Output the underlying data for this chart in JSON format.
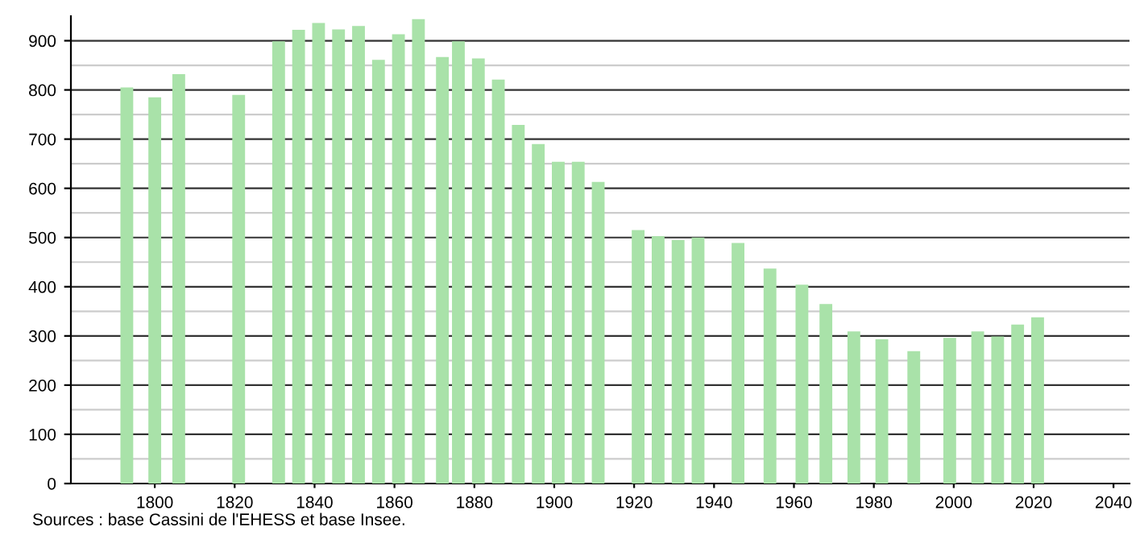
{
  "chart_data": {
    "type": "bar",
    "x": [
      1793,
      1800,
      1806,
      1821,
      1831,
      1836,
      1841,
      1846,
      1851,
      1856,
      1861,
      1866,
      1872,
      1876,
      1881,
      1886,
      1891,
      1896,
      1901,
      1906,
      1911,
      1921,
      1926,
      1931,
      1936,
      1946,
      1954,
      1962,
      1968,
      1975,
      1982,
      1990,
      1999,
      2006,
      2011,
      2016,
      2021
    ],
    "values": [
      805,
      785,
      832,
      790,
      899,
      922,
      936,
      923,
      930,
      861,
      913,
      944,
      867,
      899,
      864,
      821,
      729,
      690,
      654,
      654,
      613,
      515,
      503,
      495,
      500,
      489,
      437,
      404,
      365,
      309,
      293,
      269,
      296,
      309,
      299,
      323,
      338
    ],
    "color": "#a9e2a9",
    "xlim": [
      1779,
      2044
    ],
    "xticks": [
      1800,
      1820,
      1840,
      1860,
      1880,
      1900,
      1920,
      1940,
      1960,
      1980,
      2000,
      2020,
      2040
    ],
    "ylim": [
      0,
      950
    ],
    "yticks": [
      0,
      100,
      200,
      300,
      400,
      500,
      600,
      700,
      800,
      900
    ],
    "grid": "y",
    "annotations": [
      "Sources : base Cassini de l'EHESS et base Insee."
    ]
  }
}
